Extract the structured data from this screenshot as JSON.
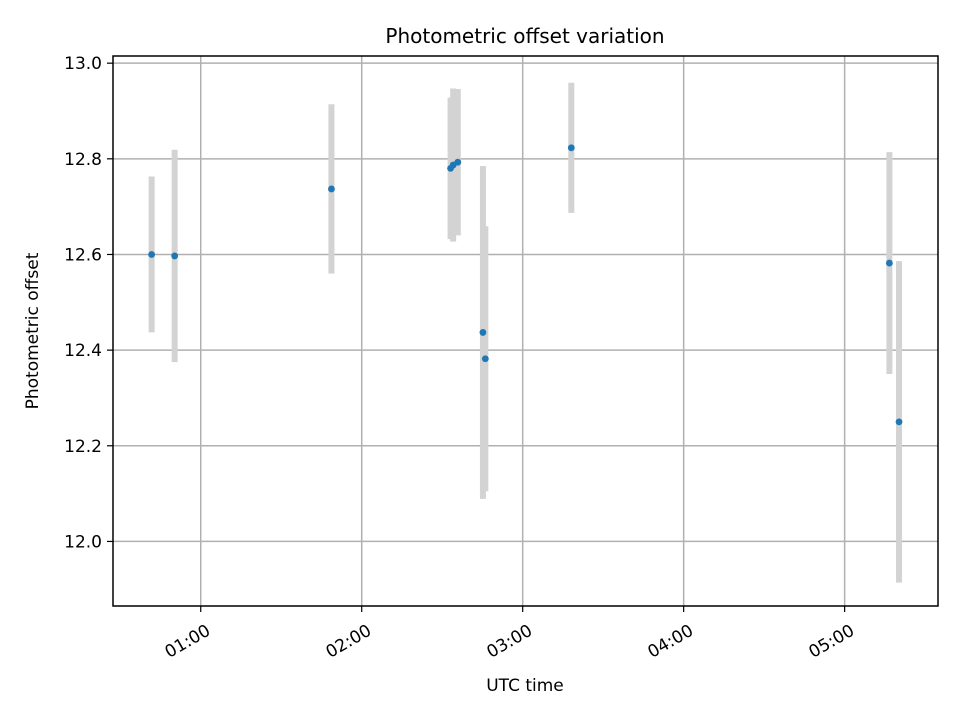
{
  "chart_data": {
    "type": "scatter",
    "title": "Photometric offset variation",
    "xlabel": "UTC time",
    "ylabel": "Photometric offset",
    "x_unit": "hours UTC",
    "xlim": [
      0.455,
      5.58
    ],
    "ylim": [
      11.865,
      13.015
    ],
    "x_ticks": [
      {
        "value": 1,
        "label": "01:00"
      },
      {
        "value": 2,
        "label": "02:00"
      },
      {
        "value": 3,
        "label": "03:00"
      },
      {
        "value": 4,
        "label": "04:00"
      },
      {
        "value": 5,
        "label": "05:00"
      }
    ],
    "y_ticks": [
      {
        "value": 12.0,
        "label": "12.0"
      },
      {
        "value": 12.2,
        "label": "12.2"
      },
      {
        "value": 12.4,
        "label": "12.4"
      },
      {
        "value": 12.6,
        "label": "12.6"
      },
      {
        "value": 12.8,
        "label": "12.8"
      },
      {
        "value": 13.0,
        "label": "13.0"
      }
    ],
    "grid": true,
    "point_color": "#1f77b4",
    "errorbar_color": "#d3d3d3",
    "points": [
      {
        "x": 0.695,
        "y": 12.6,
        "err": 0.163
      },
      {
        "x": 0.838,
        "y": 12.597,
        "err": 0.222
      },
      {
        "x": 1.812,
        "y": 12.737,
        "err": 0.177
      },
      {
        "x": 2.552,
        "y": 12.78,
        "err": 0.148
      },
      {
        "x": 2.568,
        "y": 12.787,
        "err": 0.16
      },
      {
        "x": 2.597,
        "y": 12.793,
        "err": 0.153
      },
      {
        "x": 2.753,
        "y": 12.437,
        "err": 0.348
      },
      {
        "x": 2.768,
        "y": 12.382,
        "err": 0.277
      },
      {
        "x": 3.302,
        "y": 12.823,
        "err": 0.136
      },
      {
        "x": 5.278,
        "y": 12.582,
        "err": 0.232
      },
      {
        "x": 5.338,
        "y": 12.25,
        "err": 0.336
      }
    ]
  }
}
